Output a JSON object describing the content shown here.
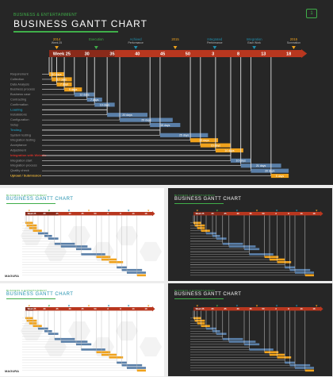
{
  "header": {
    "supertitle": "BUSINESS & ENTERTAINMENT",
    "title": "BUSINESS GANTT CHART",
    "icon_number": "1"
  },
  "colors": {
    "dark_bg": "#262626",
    "green": "#3fae49",
    "teal": "#1f8fae",
    "timeline_red": "#b8371f",
    "orange": "#f0a21c",
    "steel_blue": "#5a7fa8",
    "dark_red": "#d0322a"
  },
  "milestones": [
    {
      "label": "2014",
      "sub": "Week 25",
      "color": "#f0a21c"
    },
    {
      "label": "Execution",
      "sub": "",
      "color": "#3fae49"
    },
    {
      "label": "Achived",
      "sub": "Performance",
      "color": "#1f8fae"
    },
    {
      "label": "2015",
      "sub": "",
      "color": "#f0a21c"
    },
    {
      "label": "Integrated",
      "sub": "Performance",
      "color": "#1f8fae"
    },
    {
      "label": "Integration",
      "sub": "Each Work",
      "color": "#1f8fae"
    },
    {
      "label": "2015",
      "sub": "Summation",
      "color": "#f0a21c"
    }
  ],
  "weeks": [
    "Week 25",
    "30",
    "35",
    "40",
    "45",
    "50",
    "3",
    "8",
    "13",
    "18"
  ],
  "tasks": [
    {
      "label": "Requirement",
      "value": "10 days",
      "kind": "orange",
      "start": 0.0,
      "dur": 0.6
    },
    {
      "label": "Collection",
      "value": "17 days",
      "kind": "orange",
      "start": 0.1,
      "dur": 0.8
    },
    {
      "label": "Data Analysis",
      "value": "7 days",
      "kind": "orange",
      "start": 0.3,
      "dur": 0.6
    },
    {
      "label": "Business process",
      "value": "9 days",
      "kind": "orange",
      "start": 0.6,
      "dur": 0.7
    },
    {
      "label": "Business case",
      "value": "12 days",
      "kind": "steel",
      "start": 1.0,
      "dur": 0.8
    },
    {
      "label": "Contracting",
      "value": "7 days",
      "kind": "steel",
      "start": 1.5,
      "dur": 0.6
    },
    {
      "label": "Confirmation",
      "value": "10 days",
      "kind": "steel",
      "start": 1.8,
      "dur": 0.8
    },
    {
      "label": "Loading",
      "value": "",
      "kind": "header",
      "start": 0.0,
      "dur": 0.0
    },
    {
      "label": "Installations",
      "value": "20 days",
      "kind": "steel",
      "start": 2.3,
      "dur": 1.6
    },
    {
      "label": "Configuration",
      "value": "29 days",
      "kind": "steel",
      "start": 2.8,
      "dur": 2.1
    },
    {
      "label": "Setup",
      "value": "15 days",
      "kind": "steel",
      "start": 4.0,
      "dur": 1.2
    },
    {
      "label": "Testing",
      "value": "",
      "kind": "header",
      "start": 0.0,
      "dur": 0.0
    },
    {
      "label": "System testing",
      "value": "25 days",
      "kind": "steel",
      "start": 4.4,
      "dur": 1.9
    },
    {
      "label": "Integration testing",
      "value": "13 days",
      "kind": "orange",
      "start": 5.6,
      "dur": 1.1
    },
    {
      "label": "Acceptance",
      "value": "16 days",
      "kind": "orange",
      "start": 6.0,
      "dur": 1.2
    },
    {
      "label": "Adjustment",
      "value": "14 days",
      "kind": "orange",
      "start": 6.6,
      "dur": 1.1
    },
    {
      "label": "Integration with Website",
      "value": "",
      "kind": "red",
      "start": 0.0,
      "dur": 0.0
    },
    {
      "label": "Integration start",
      "value": "10 days",
      "kind": "steel",
      "start": 7.2,
      "dur": 0.8
    },
    {
      "label": "Integration process",
      "value": "21 days",
      "kind": "steel",
      "start": 7.6,
      "dur": 1.6
    },
    {
      "label": "Quality check",
      "value": "20 days",
      "kind": "steel",
      "start": 8.0,
      "dur": 1.5
    },
    {
      "label": "Upload / Submission",
      "value": "5 days",
      "kind": "orange",
      "start": 8.8,
      "dur": 0.7
    }
  ],
  "brand": "MAGURA"
}
